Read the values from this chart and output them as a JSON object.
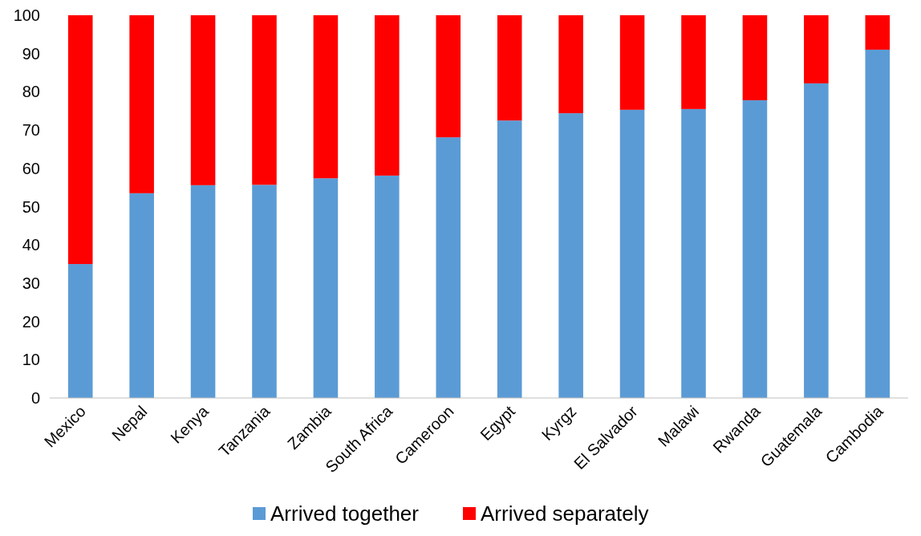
{
  "chart_data": {
    "type": "bar",
    "stacked": true,
    "categories": [
      "Mexico",
      "Nepal",
      "Kenya",
      "Tanzania",
      "Zambia",
      "South Africa",
      "Cameroon",
      "Egypt",
      "Kyrgz",
      "El Salvador",
      "Malawi",
      "Rwanda",
      "Guatemala",
      "Cambodia"
    ],
    "series": [
      {
        "name": "Arrived together",
        "color": "#5b9bd5",
        "values": [
          35.0,
          53.5,
          55.6,
          55.7,
          57.4,
          58.1,
          68.1,
          72.5,
          74.4,
          75.3,
          75.5,
          77.8,
          82.2,
          91.0
        ]
      },
      {
        "name": "Arrived separately",
        "color": "#ff0000",
        "values": [
          65.0,
          46.5,
          44.4,
          44.3,
          42.6,
          41.9,
          31.9,
          27.5,
          25.6,
          24.7,
          24.5,
          22.2,
          17.8,
          9.0
        ]
      }
    ],
    "ylim": [
      0,
      100
    ],
    "yticks": [
      0,
      10,
      20,
      30,
      40,
      50,
      60,
      70,
      80,
      90,
      100
    ],
    "grid": false,
    "legend": "bottom"
  }
}
